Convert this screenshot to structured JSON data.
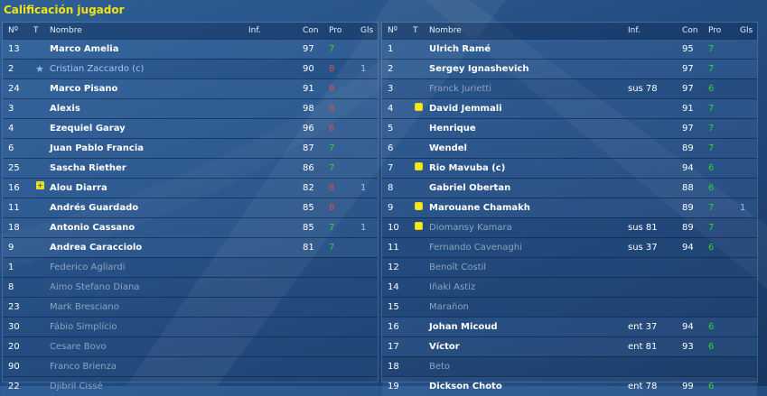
{
  "title": "Calificación jugador",
  "headers": {
    "num": "Nº",
    "t": "T",
    "name": "Nombre",
    "inf": "Inf.",
    "con": "Con",
    "pro": "Pro",
    "gls": "Gls"
  },
  "colors": {
    "pro_good": "#2fd22f",
    "pro_bad": "#e34848",
    "title": "#f4e40e"
  },
  "left": {
    "rows": [
      {
        "num": "13",
        "name": "Marco Amelia",
        "inf": "",
        "con": "97",
        "pro": "7",
        "gls": "",
        "state": "active",
        "icon": ""
      },
      {
        "num": "2",
        "name": "Cristian Zaccardo (c)",
        "inf": "",
        "con": "90",
        "pro": "8",
        "gls": "1",
        "state": "captain",
        "icon": "star-icon"
      },
      {
        "num": "24",
        "name": "Marco Pisano",
        "inf": "",
        "con": "91",
        "pro": "8",
        "gls": "",
        "state": "active",
        "icon": ""
      },
      {
        "num": "3",
        "name": "Alexis",
        "inf": "",
        "con": "98",
        "pro": "8",
        "gls": "",
        "state": "active",
        "icon": ""
      },
      {
        "num": "4",
        "name": "Ezequiel Garay",
        "inf": "",
        "con": "96",
        "pro": "8",
        "gls": "",
        "state": "active",
        "icon": ""
      },
      {
        "num": "6",
        "name": "Juan Pablo Francia",
        "inf": "",
        "con": "87",
        "pro": "7",
        "gls": "",
        "state": "active",
        "icon": ""
      },
      {
        "num": "25",
        "name": "Sascha Riether",
        "inf": "",
        "con": "86",
        "pro": "7",
        "gls": "",
        "state": "active",
        "icon": ""
      },
      {
        "num": "16",
        "name": "Alou Diarra",
        "inf": "",
        "con": "82",
        "pro": "8",
        "gls": "1",
        "state": "active",
        "icon": "substitution-icon"
      },
      {
        "num": "11",
        "name": "Andrés Guardado",
        "inf": "",
        "con": "85",
        "pro": "8",
        "gls": "",
        "state": "active",
        "icon": ""
      },
      {
        "num": "18",
        "name": "Antonio Cassano",
        "inf": "",
        "con": "85",
        "pro": "7",
        "gls": "1",
        "state": "active",
        "icon": ""
      },
      {
        "num": "9",
        "name": "Andrea Caracciolo",
        "inf": "",
        "con": "81",
        "pro": "7",
        "gls": "",
        "state": "active",
        "icon": ""
      },
      {
        "num": "1",
        "name": "Federico Agliardi",
        "inf": "",
        "con": "",
        "pro": "",
        "gls": "",
        "state": "inactive",
        "icon": ""
      },
      {
        "num": "8",
        "name": "Aimo Stefano Diana",
        "inf": "",
        "con": "",
        "pro": "",
        "gls": "",
        "state": "inactive",
        "icon": ""
      },
      {
        "num": "23",
        "name": "Mark Bresciano",
        "inf": "",
        "con": "",
        "pro": "",
        "gls": "",
        "state": "inactive",
        "icon": ""
      },
      {
        "num": "30",
        "name": "Fábio Simplício",
        "inf": "",
        "con": "",
        "pro": "",
        "gls": "",
        "state": "inactive",
        "icon": ""
      },
      {
        "num": "20",
        "name": "Cesare Bovo",
        "inf": "",
        "con": "",
        "pro": "",
        "gls": "",
        "state": "inactive",
        "icon": ""
      },
      {
        "num": "90",
        "name": "Franco Brienza",
        "inf": "",
        "con": "",
        "pro": "",
        "gls": "",
        "state": "inactive",
        "icon": ""
      },
      {
        "num": "22",
        "name": "Djibril Cissé",
        "inf": "",
        "con": "",
        "pro": "",
        "gls": "",
        "state": "inactive",
        "icon": ""
      }
    ]
  },
  "right": {
    "rows": [
      {
        "num": "1",
        "name": "Ulrich Ramé",
        "inf": "",
        "con": "95",
        "pro": "7",
        "gls": "",
        "state": "active",
        "icon": ""
      },
      {
        "num": "2",
        "name": "Sergey Ignashevich",
        "inf": "",
        "con": "97",
        "pro": "7",
        "gls": "",
        "state": "active",
        "icon": ""
      },
      {
        "num": "3",
        "name": "Franck Jurietti",
        "inf": "sus 78",
        "con": "97",
        "pro": "6",
        "gls": "",
        "state": "inactive",
        "icon": ""
      },
      {
        "num": "4",
        "name": "David Jemmali",
        "inf": "",
        "con": "91",
        "pro": "7",
        "gls": "",
        "state": "active",
        "icon": "yellow-card-icon"
      },
      {
        "num": "5",
        "name": "Henrique",
        "inf": "",
        "con": "97",
        "pro": "7",
        "gls": "",
        "state": "active",
        "icon": ""
      },
      {
        "num": "6",
        "name": "Wendel",
        "inf": "",
        "con": "89",
        "pro": "7",
        "gls": "",
        "state": "active",
        "icon": ""
      },
      {
        "num": "7",
        "name": "Rio Mavuba (c)",
        "inf": "",
        "con": "94",
        "pro": "6",
        "gls": "",
        "state": "active",
        "icon": "yellow-card-icon"
      },
      {
        "num": "8",
        "name": "Gabriel Obertan",
        "inf": "",
        "con": "88",
        "pro": "6",
        "gls": "",
        "state": "active",
        "icon": ""
      },
      {
        "num": "9",
        "name": "Marouane Chamakh",
        "inf": "",
        "con": "89",
        "pro": "7",
        "gls": "1",
        "state": "active",
        "icon": "yellow-card-icon"
      },
      {
        "num": "10",
        "name": "Diomansy Kamara",
        "inf": "sus 81",
        "con": "89",
        "pro": "7",
        "gls": "",
        "state": "inactive",
        "icon": "yellow-card-icon"
      },
      {
        "num": "11",
        "name": "Fernando Cavenaghi",
        "inf": "sus 37",
        "con": "94",
        "pro": "6",
        "gls": "",
        "state": "inactive",
        "icon": ""
      },
      {
        "num": "12",
        "name": "Benoît Costil",
        "inf": "",
        "con": "",
        "pro": "",
        "gls": "",
        "state": "inactive",
        "icon": ""
      },
      {
        "num": "14",
        "name": "Iñaki Astiz",
        "inf": "",
        "con": "",
        "pro": "",
        "gls": "",
        "state": "inactive",
        "icon": ""
      },
      {
        "num": "15",
        "name": "Marañon",
        "inf": "",
        "con": "",
        "pro": "",
        "gls": "",
        "state": "inactive",
        "icon": ""
      },
      {
        "num": "16",
        "name": "Johan Micoud",
        "inf": "ent 37",
        "con": "94",
        "pro": "6",
        "gls": "",
        "state": "active",
        "icon": ""
      },
      {
        "num": "17",
        "name": "Víctor",
        "inf": "ent 81",
        "con": "93",
        "pro": "6",
        "gls": "",
        "state": "active",
        "icon": ""
      },
      {
        "num": "18",
        "name": "Beto",
        "inf": "",
        "con": "",
        "pro": "",
        "gls": "",
        "state": "inactive",
        "icon": ""
      },
      {
        "num": "19",
        "name": "Dickson Choto",
        "inf": "ent 78",
        "con": "99",
        "pro": "6",
        "gls": "",
        "state": "active",
        "icon": ""
      }
    ]
  }
}
